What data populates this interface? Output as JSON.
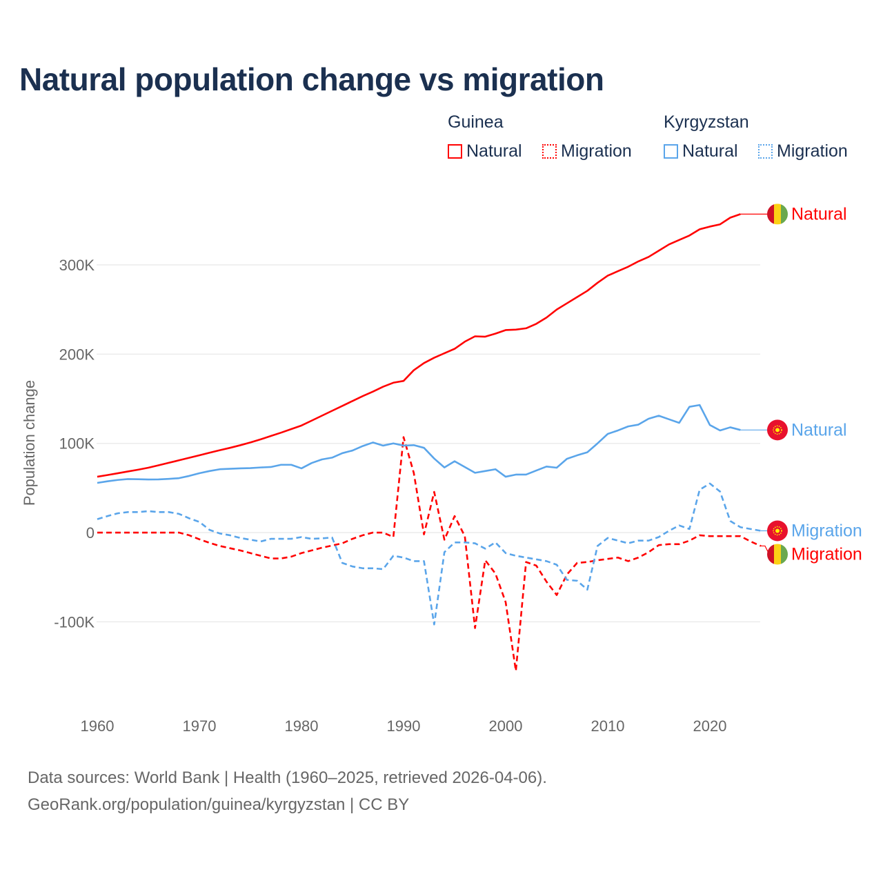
{
  "title": "Natural population change vs migration",
  "legend": {
    "groups": [
      {
        "name": "Guinea",
        "items": [
          "Natural",
          "Migration"
        ]
      },
      {
        "name": "Kyrgyzstan",
        "items": [
          "Natural",
          "Migration"
        ]
      }
    ]
  },
  "colors": {
    "guinea": "#ff0000",
    "kyrgyzstan": "#5aa5ea",
    "title": "#1b3050",
    "grid": "#ebebeb"
  },
  "footer": {
    "line1": "Data sources: World Bank | Health (1960–2025, retrieved 2026-04-06).",
    "line2": "GeoRank.org/population/guinea/kyrgyzstan | CC BY"
  },
  "chart_data": {
    "type": "line",
    "title": "Natural population change vs migration",
    "xlabel": "",
    "ylabel": "Population change",
    "xlim": [
      1960,
      2025
    ],
    "ylim": [
      -184000,
      365000
    ],
    "x_ticks": [
      1960,
      1970,
      1980,
      1990,
      2000,
      2010,
      2020
    ],
    "x_tick_labels": [
      "1960",
      "1970",
      "1980",
      "1990",
      "2000",
      "2010",
      "2020"
    ],
    "y_ticks": [
      -100000,
      0,
      100000,
      200000,
      300000
    ],
    "y_tick_labels": [
      "-100K",
      "0",
      "100K",
      "200K",
      "300K"
    ],
    "grid": true,
    "legend_position": "top-right",
    "series": [
      {
        "name": "Guinea Natural",
        "country": "guinea",
        "kind": "Natural",
        "style": "solid",
        "start": 1960,
        "values": [
          62600,
          64500,
          66500,
          68500,
          70500,
          72700,
          75400,
          78200,
          81000,
          83800,
          86600,
          89500,
          92300,
          95000,
          97900,
          101000,
          104500,
          108300,
          112000,
          116000,
          120000,
          125500,
          131000,
          136500,
          142000,
          147500,
          153000,
          158000,
          163500,
          168000,
          170000,
          182000,
          190000,
          196000,
          201000,
          206000,
          214000,
          220000,
          219600,
          223000,
          227000,
          227500,
          229000,
          234000,
          241000,
          250000,
          257000,
          264000,
          271000,
          280000,
          288000,
          293000,
          298000,
          304000,
          309000,
          316000,
          323000,
          328000,
          333000,
          340000,
          343000,
          345500,
          353000,
          357000
        ]
      },
      {
        "name": "Kyrgyzstan Natural",
        "country": "kyrgyzstan",
        "kind": "Natural",
        "style": "solid",
        "start": 1960,
        "values": [
          55700,
          57500,
          59000,
          60000,
          59800,
          59500,
          59600,
          60200,
          61000,
          63500,
          66500,
          69000,
          71000,
          71500,
          72000,
          72300,
          73000,
          73500,
          76000,
          76000,
          72000,
          78000,
          82000,
          84000,
          89000,
          92000,
          97000,
          101000,
          97500,
          100000,
          97500,
          98000,
          95000,
          83000,
          73000,
          80000,
          73500,
          67000,
          69000,
          71000,
          62600,
          65000,
          65000,
          69600,
          74000,
          72700,
          82700,
          86600,
          90000,
          100000,
          110600,
          114500,
          119000,
          121000,
          127600,
          131000,
          127000,
          123000,
          141000,
          143000,
          120600,
          114500,
          118000,
          115000
        ]
      },
      {
        "name": "Guinea Migration",
        "country": "guinea",
        "kind": "Migration",
        "style": "dashed",
        "start": 1960,
        "values": [
          0,
          0,
          0,
          0,
          0,
          0,
          0,
          0,
          0,
          -3000,
          -7500,
          -11500,
          -15000,
          -17500,
          -20000,
          -23000,
          -26000,
          -29000,
          -29000,
          -27000,
          -23000,
          -20000,
          -17000,
          -14500,
          -12000,
          -7000,
          -3000,
          0,
          0,
          -5000,
          107000,
          67000,
          -2000,
          45600,
          -8000,
          18500,
          -4000,
          -107000,
          -31000,
          -46000,
          -78000,
          -155000,
          -33000,
          -37000,
          -55000,
          -70000,
          -47000,
          -34000,
          -33000,
          -31000,
          -29500,
          -28000,
          -32000,
          -28000,
          -22000,
          -14000,
          -13000,
          -13000,
          -9000,
          -3000,
          -4000,
          -4000,
          -4000,
          -4000,
          -10000,
          -15000
        ]
      },
      {
        "name": "Kyrgyzstan Migration",
        "country": "kyrgyzstan",
        "kind": "Migration",
        "style": "dashed",
        "start": 1960,
        "values": [
          15000,
          18500,
          21600,
          23000,
          23000,
          24000,
          23000,
          23000,
          21000,
          16000,
          12000,
          3000,
          -1000,
          -3000,
          -6000,
          -8000,
          -10000,
          -7000,
          -7000,
          -7000,
          -5000,
          -7000,
          -6500,
          -5500,
          -34000,
          -38000,
          -40000,
          -40000,
          -41000,
          -26000,
          -28000,
          -32000,
          -32000,
          -103000,
          -22000,
          -11000,
          -11000,
          -12000,
          -18000,
          -11000,
          -23000,
          -26000,
          -28000,
          -30000,
          -32000,
          -36000,
          -53000,
          -54000,
          -64000,
          -15000,
          -6000,
          -9000,
          -12000,
          -9000,
          -9000,
          -5000,
          2000,
          8000,
          4000,
          48000,
          55000,
          46000,
          13000,
          6000,
          4000,
          2000
        ]
      }
    ],
    "end_labels": [
      "Natural",
      "Natural",
      "Migration",
      "Migration"
    ]
  }
}
